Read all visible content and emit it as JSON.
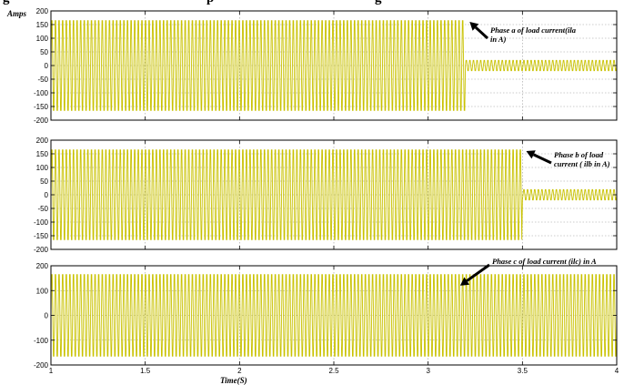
{
  "figure": {
    "title_fragment": "g",
    "title_fragment_2": "p",
    "title_fragment_3": "g",
    "xlabel": "Time(S)"
  },
  "colors": {
    "signal": "#c9c200",
    "grid": "#9a9a9a",
    "axes": "#000000",
    "background": "#ffffff",
    "arrow": "#000000"
  },
  "chart_data": [
    {
      "type": "line",
      "ylabel": "Amps",
      "xlim": [
        1,
        4
      ],
      "ylim": [
        -200,
        200
      ],
      "yticks": [
        200,
        150,
        100,
        50,
        0,
        -50,
        -100,
        -150,
        -200
      ],
      "xtick_labels_shown": false,
      "grid": true,
      "series": [
        {
          "waveform": "sinusoid",
          "x": [
            1.0,
            3.2,
            3.2,
            4.0
          ],
          "amplitude": [
            190,
            190,
            22,
            22
          ]
        }
      ],
      "annotation": {
        "lines": [
          "Phase a of load current(ila",
          "in A)"
        ],
        "arrow_to": [
          3.22,
          160
        ]
      }
    },
    {
      "type": "line",
      "xlim": [
        1,
        4
      ],
      "ylim": [
        -200,
        200
      ],
      "yticks": [
        200,
        150,
        100,
        50,
        0,
        -50,
        -100,
        -150,
        -200
      ],
      "xtick_labels_shown": false,
      "grid": true,
      "series": [
        {
          "waveform": "sinusoid",
          "x": [
            1.0,
            3.5,
            3.5,
            4.0
          ],
          "amplitude": [
            190,
            190,
            22,
            22
          ]
        }
      ],
      "annotation": {
        "lines": [
          "Phase b of load",
          "current ( ilb in A)"
        ],
        "arrow_to": [
          3.52,
          160
        ]
      }
    },
    {
      "type": "line",
      "xlim": [
        1,
        4
      ],
      "ylim": [
        -200,
        200
      ],
      "yticks": [
        200,
        100,
        0,
        -100,
        -200
      ],
      "xticks": [
        1,
        1.5,
        2,
        2.5,
        3,
        3.5,
        4
      ],
      "xlabel": "Time(S)",
      "grid": true,
      "series": [
        {
          "waveform": "sinusoid",
          "x": [
            1.0,
            4.0
          ],
          "amplitude": [
            190,
            190
          ]
        }
      ],
      "annotation": {
        "lines": [
          "Phase c of load current (ilc) in A"
        ],
        "arrow_to": [
          3.17,
          120
        ]
      }
    }
  ]
}
